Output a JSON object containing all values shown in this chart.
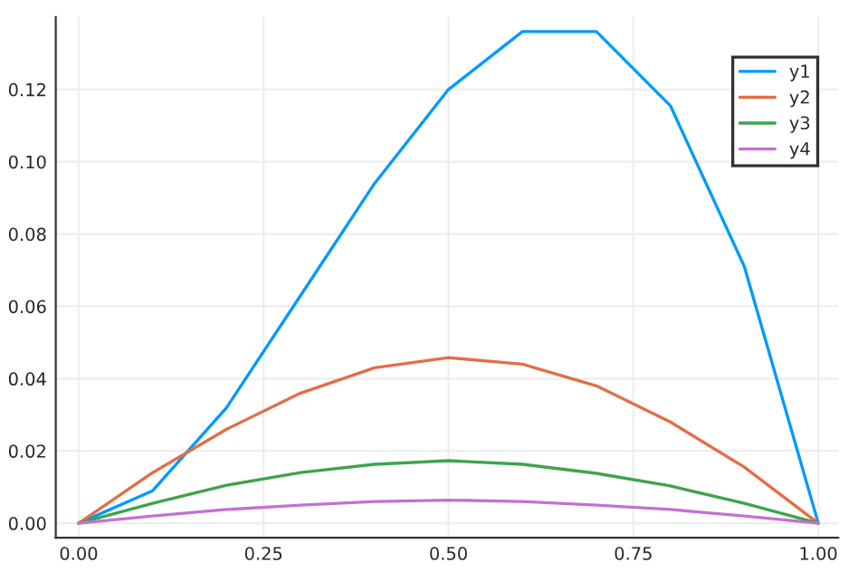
{
  "chart_data": {
    "type": "line",
    "x": [
      0,
      0.1,
      0.2,
      0.3,
      0.4,
      0.5,
      0.6,
      0.7,
      0.8,
      0.9,
      1.0
    ],
    "series": [
      {
        "name": "y1",
        "color": "#009af9",
        "values": [
          0,
          0.009,
          0.032,
          0.063,
          0.094,
          0.12,
          0.136,
          0.136,
          0.1155,
          0.071,
          0
        ]
      },
      {
        "name": "y2",
        "color": "#e26f46",
        "values": [
          0,
          0.014,
          0.026,
          0.036,
          0.043,
          0.0458,
          0.044,
          0.038,
          0.028,
          0.0155,
          0
        ]
      },
      {
        "name": "y3",
        "color": "#3da44d",
        "values": [
          0,
          0.0055,
          0.0105,
          0.014,
          0.0163,
          0.0173,
          0.0163,
          0.0138,
          0.0103,
          0.0055,
          0
        ]
      },
      {
        "name": "y4",
        "color": "#c271d2",
        "values": [
          0,
          0.002,
          0.0038,
          0.005,
          0.006,
          0.0064,
          0.006,
          0.005,
          0.0038,
          0.002,
          0
        ]
      }
    ],
    "xlim": [
      -0.031,
      1.027
    ],
    "ylim": [
      -0.004,
      0.14
    ],
    "xticks": [
      {
        "value": 0,
        "label": "0.00"
      },
      0.25,
      {
        "value": 0.5,
        "label": "0.50"
      },
      0.75,
      {
        "value": 1,
        "label": "1.00"
      }
    ],
    "yticks": [
      {
        "value": 0,
        "label": "0.00"
      },
      0.02,
      0.04,
      0.06,
      0.08,
      {
        "value": 0.1,
        "label": "0.10"
      },
      0.12
    ],
    "grid": true,
    "legend": "top right",
    "marker": "none",
    "line_style": "solid"
  }
}
